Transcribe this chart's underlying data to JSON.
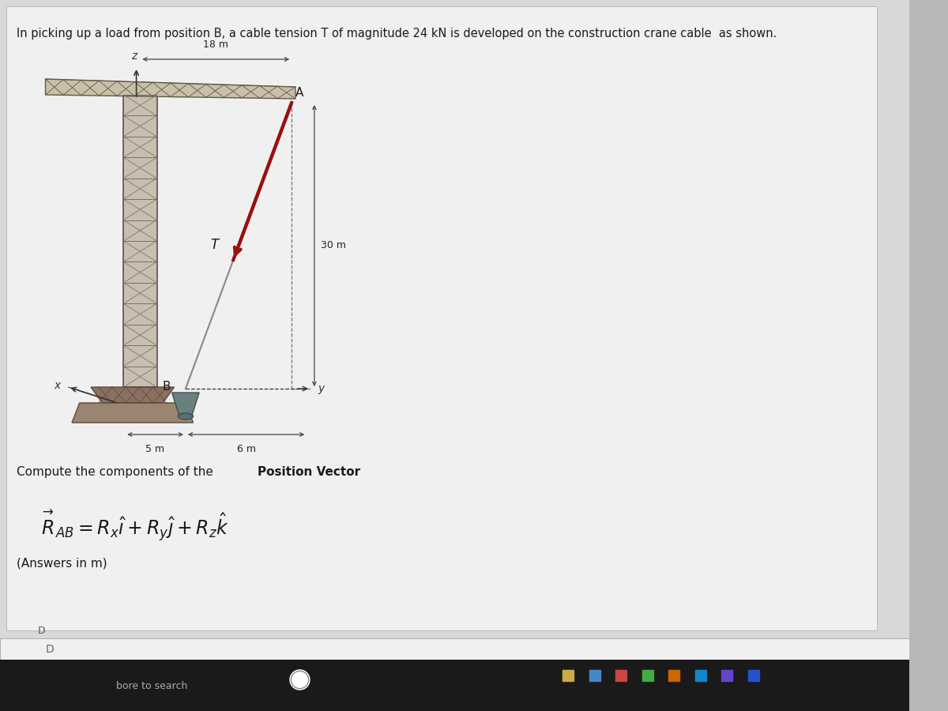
{
  "title_text": "In picking up a load from position B, a cable tension T of magnitude 24 kN is developed on the construction crane cable  as shown.",
  "bg_outer": "#b8b8b8",
  "bg_screen": "#d8d8d8",
  "bg_paper": "#e8e8e8",
  "bg_content": "#f0f0f0",
  "tower_face": "#c8bfb0",
  "tower_edge": "#5a5050",
  "tower_truss": "#888070",
  "boom_face": "#c8c0a8",
  "boom_edge": "#605848",
  "base_face": "#8a7060",
  "base_edge": "#5a4838",
  "ground_face": "#9a8570",
  "cable_color": "#991111",
  "wire_color": "#888888",
  "dim_color": "#444444",
  "text_color": "#1a1a1a",
  "axis_color": "#333333",
  "load_face": "#6a8080",
  "dim_18m": "18 m",
  "dim_30m": "30 m",
  "dim_5m": "5 m",
  "dim_6m": "6 m",
  "label_A": "A",
  "label_B": "B",
  "label_T": "T",
  "label_x": "x",
  "label_y": "y",
  "label_z": "z"
}
